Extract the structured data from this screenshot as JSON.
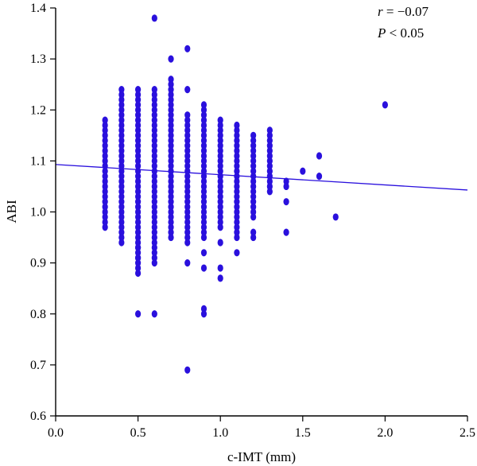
{
  "chart_data": {
    "type": "scatter",
    "xlabel": "c-IMT (mm)",
    "ylabel": "ABI",
    "xlim": [
      0.0,
      2.5
    ],
    "ylim": [
      0.6,
      1.4
    ],
    "x_ticks": [
      "0.0",
      "0.5",
      "1.0",
      "1.5",
      "2.0",
      "2.5"
    ],
    "y_ticks": [
      "0.6",
      "0.7",
      "0.8",
      "0.9",
      "1.0",
      "1.1",
      "1.2",
      "1.3",
      "1.4"
    ],
    "grid": false,
    "point_color": "#2a10dd",
    "annotations": {
      "r_symbol": "r",
      "r_value": " = −0.07",
      "p_symbol": "P",
      "p_value": " < 0.05"
    },
    "regression_line": {
      "x": [
        0.0,
        2.5
      ],
      "y": [
        1.093,
        1.043
      ]
    },
    "columns": [
      {
        "x": 0.3,
        "ymin": 0.97,
        "ymax": 1.18
      },
      {
        "x": 0.4,
        "ymin": 0.94,
        "ymax": 1.24
      },
      {
        "x": 0.5,
        "ymin": 0.88,
        "ymax": 1.24
      },
      {
        "x": 0.6,
        "ymin": 0.9,
        "ymax": 1.24
      },
      {
        "x": 0.7,
        "ymin": 0.95,
        "ymax": 1.26
      },
      {
        "x": 0.8,
        "ymin": 0.94,
        "ymax": 1.19
      },
      {
        "x": 0.9,
        "ymin": 0.95,
        "ymax": 1.21
      },
      {
        "x": 1.0,
        "ymin": 0.97,
        "ymax": 1.18
      },
      {
        "x": 1.1,
        "ymin": 0.95,
        "ymax": 1.17
      },
      {
        "x": 1.2,
        "ymin": 0.99,
        "ymax": 1.15
      },
      {
        "x": 1.3,
        "ymin": 1.04,
        "ymax": 1.16
      }
    ],
    "points": [
      {
        "x": 0.6,
        "y": 1.38
      },
      {
        "x": 0.8,
        "y": 1.32
      },
      {
        "x": 0.7,
        "y": 1.3
      },
      {
        "x": 0.8,
        "y": 1.24
      },
      {
        "x": 0.5,
        "y": 0.93
      },
      {
        "x": 0.5,
        "y": 0.91
      },
      {
        "x": 0.5,
        "y": 0.8
      },
      {
        "x": 0.6,
        "y": 0.8
      },
      {
        "x": 0.8,
        "y": 0.9
      },
      {
        "x": 0.8,
        "y": 0.69
      },
      {
        "x": 0.9,
        "y": 0.92
      },
      {
        "x": 0.9,
        "y": 0.89
      },
      {
        "x": 0.9,
        "y": 0.81
      },
      {
        "x": 0.9,
        "y": 0.8
      },
      {
        "x": 1.0,
        "y": 0.94
      },
      {
        "x": 1.0,
        "y": 0.89
      },
      {
        "x": 1.0,
        "y": 0.87
      },
      {
        "x": 1.1,
        "y": 0.92
      },
      {
        "x": 1.2,
        "y": 0.95
      },
      {
        "x": 1.2,
        "y": 0.96
      },
      {
        "x": 1.4,
        "y": 1.06
      },
      {
        "x": 1.4,
        "y": 1.05
      },
      {
        "x": 1.4,
        "y": 1.02
      },
      {
        "x": 1.4,
        "y": 0.96
      },
      {
        "x": 1.5,
        "y": 1.08
      },
      {
        "x": 1.6,
        "y": 1.11
      },
      {
        "x": 1.6,
        "y": 1.07
      },
      {
        "x": 1.7,
        "y": 0.99
      },
      {
        "x": 2.0,
        "y": 1.21
      }
    ]
  }
}
